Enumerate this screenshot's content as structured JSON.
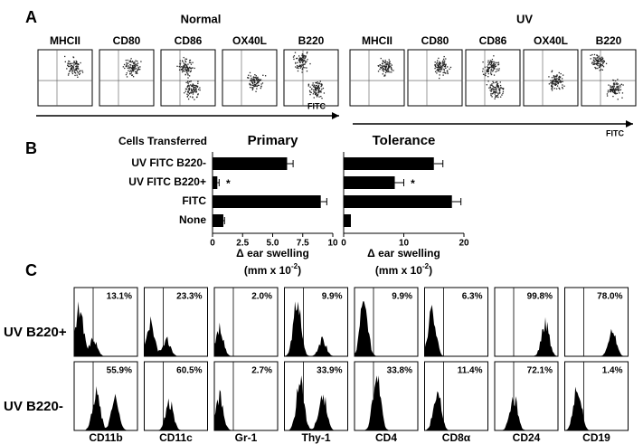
{
  "panel_labels": [
    "A",
    "B",
    "C"
  ],
  "panel_a": {
    "groups": [
      {
        "title": "Normal",
        "markers": [
          "MHCII",
          "CD80",
          "CD86",
          "OX40L",
          "B220"
        ],
        "axis_label": "FITC"
      },
      {
        "title": "UV",
        "markers": [
          "MHCII",
          "CD80",
          "CD86",
          "OX40L",
          "B220"
        ],
        "axis_label": "FITC"
      }
    ]
  },
  "row_header": "Cells Transferred",
  "chart_data": [
    {
      "type": "hbar",
      "title": "Primary",
      "categories": [
        "UV FITC B220-",
        "UV FITC B220+",
        "FITC",
        "None"
      ],
      "values": [
        6.2,
        0.4,
        9.0,
        0.9
      ],
      "errors": [
        0.5,
        0.15,
        0.5,
        0.1
      ],
      "color": "#000000",
      "xlim": [
        0,
        10
      ],
      "xticks": [
        0,
        2.5,
        {
          "value": 5,
          "label": "5.0"
        },
        7.5,
        10
      ],
      "x_label": "Δ ear swelling",
      "x_unit": [
        "(mm x 10",
        "-2",
        ")"
      ],
      "annotations": [
        "*"
      ]
    },
    {
      "type": "hbar",
      "title": "Tolerance",
      "values": [
        15,
        8.5,
        18,
        1.2
      ],
      "errors": [
        1.5,
        1.5,
        1.5,
        0
      ],
      "color": "#000000",
      "xlim": [
        0,
        20
      ],
      "xticks": [
        0,
        10,
        20
      ],
      "x_label": "Δ ear swelling",
      "x_unit": [
        "(mm x 10",
        "-2",
        ")"
      ],
      "annotations": [
        "*"
      ]
    }
  ],
  "panel_c": {
    "rows": [
      "UV B220+",
      "UV B220-"
    ],
    "markers": [
      "CD11b",
      "CD11c",
      "Gr-1",
      "Thy-1",
      "CD4",
      "CD8α",
      "CD24",
      "CD19"
    ],
    "percentages": [
      [
        "13.1%",
        "23.3%",
        "2.0%",
        "9.9%",
        "9.9%",
        "6.3%",
        "99.8%",
        "78.0%"
      ],
      [
        "55.9%",
        "60.5%",
        "2.7%",
        "33.9%",
        "33.8%",
        "11.4%",
        "72.1%",
        "1.4%"
      ]
    ]
  }
}
